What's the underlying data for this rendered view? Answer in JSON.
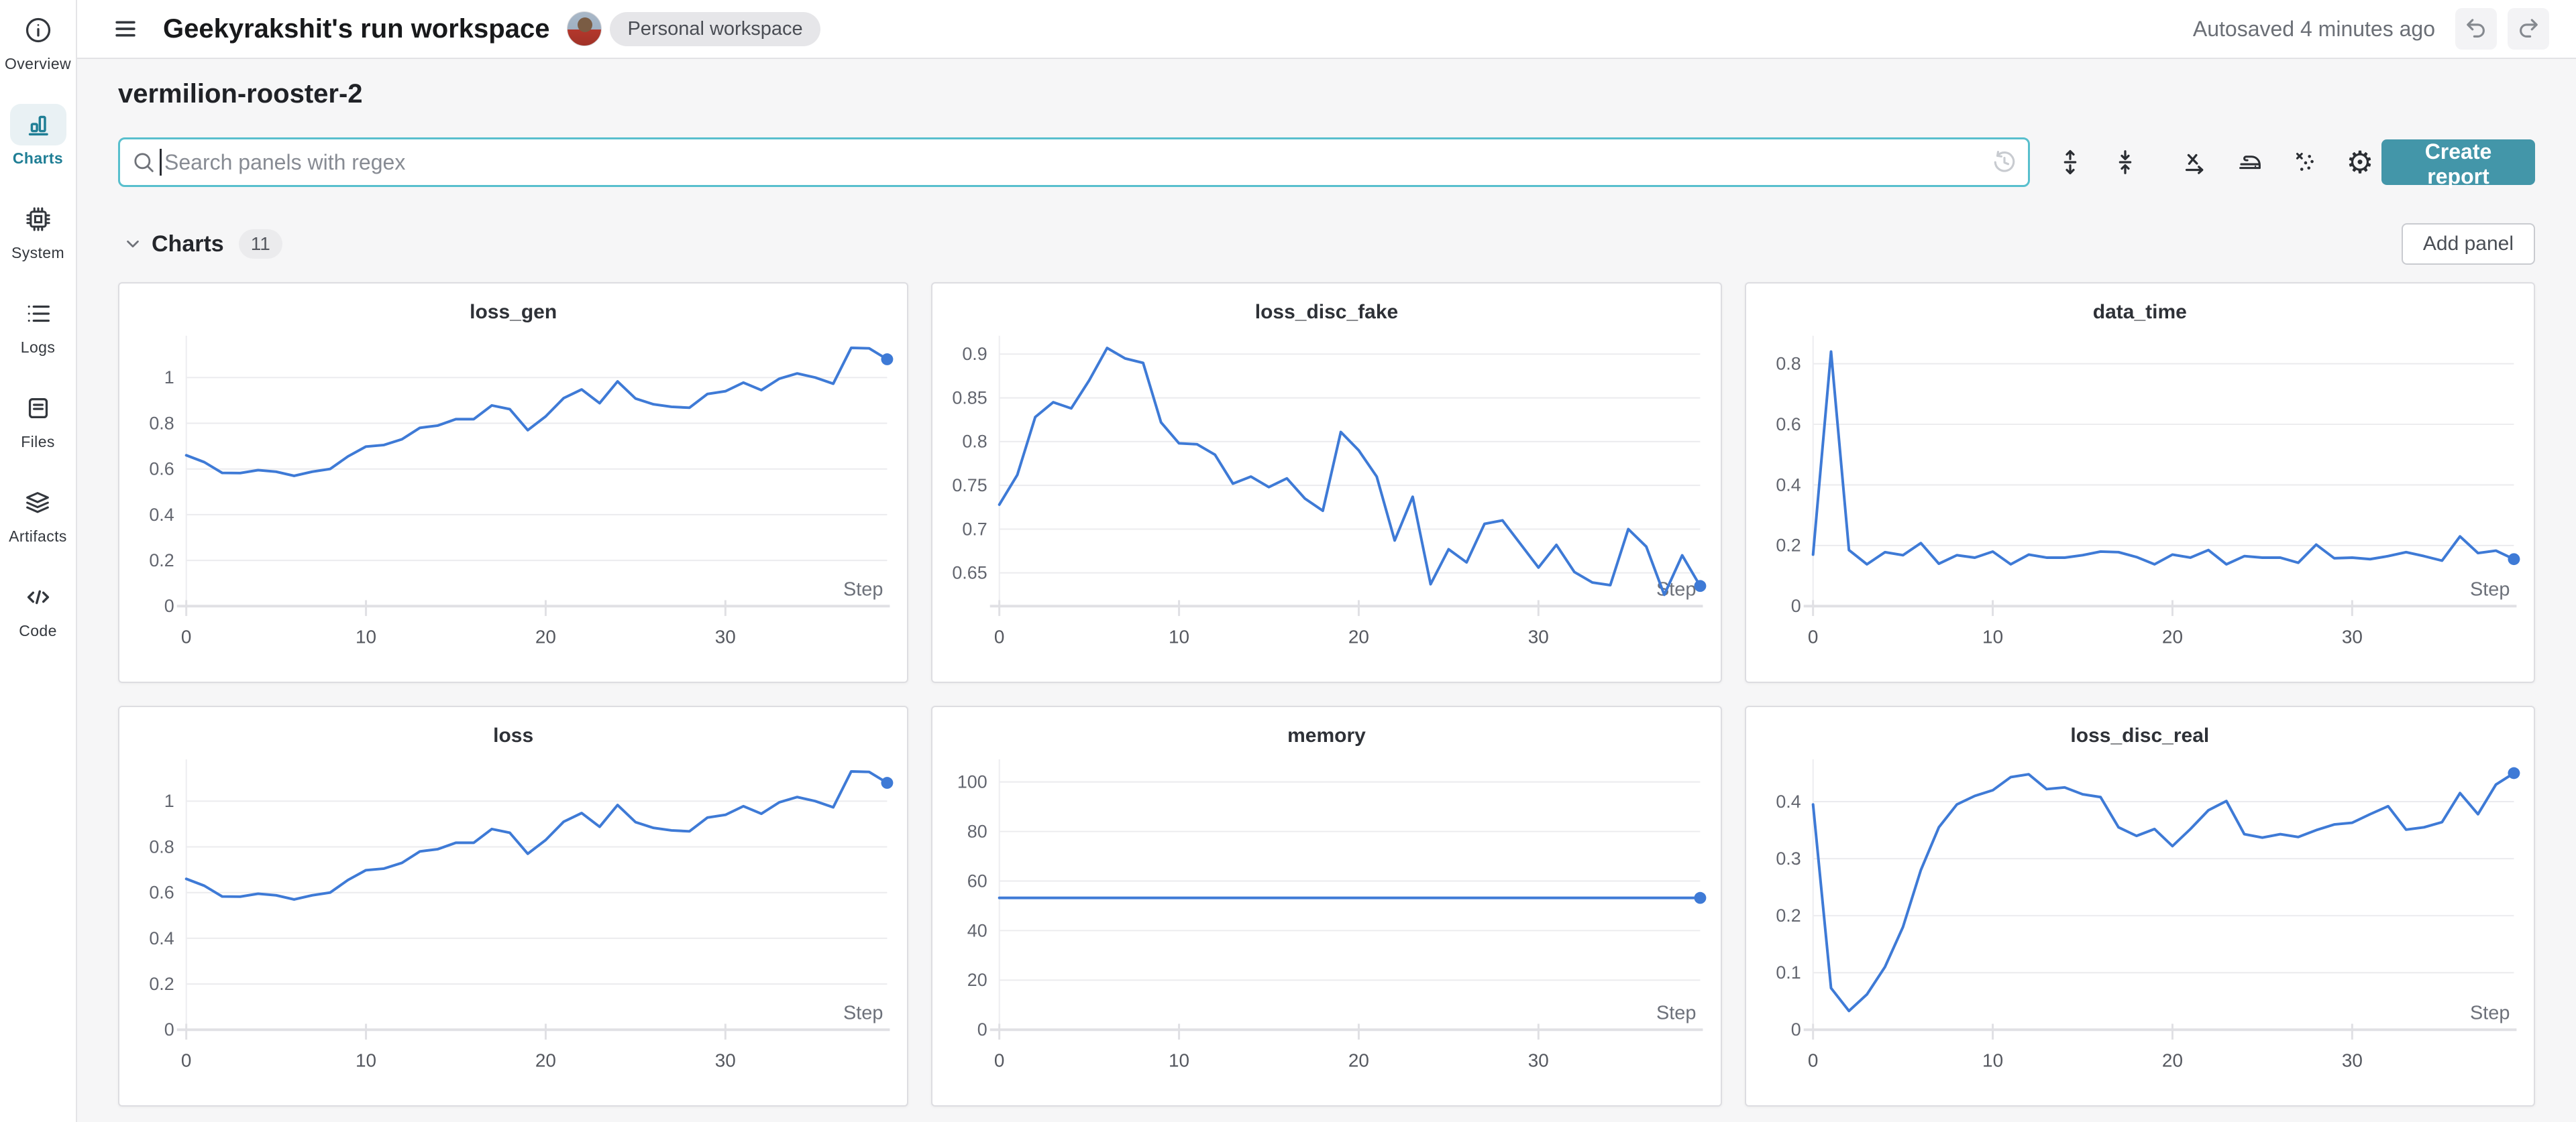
{
  "header": {
    "title": "Geekyrakshit's run workspace",
    "workspace_badge": "Personal workspace",
    "autosave_status": "Autosaved 4 minutes ago"
  },
  "sidebar": {
    "items": [
      {
        "label": "Overview",
        "icon": "info-icon",
        "active": false
      },
      {
        "label": "Charts",
        "icon": "charts-icon",
        "active": true
      },
      {
        "label": "System",
        "icon": "system-icon",
        "active": false
      },
      {
        "label": "Logs",
        "icon": "logs-icon",
        "active": false
      },
      {
        "label": "Files",
        "icon": "files-icon",
        "active": false
      },
      {
        "label": "Artifacts",
        "icon": "artifacts-icon",
        "active": false
      },
      {
        "label": "Code",
        "icon": "code-icon",
        "active": false
      }
    ]
  },
  "run": {
    "name": "vermilion-rooster-2"
  },
  "search": {
    "placeholder": "Search panels with regex"
  },
  "toolbar": {
    "create_report_label": "Create report",
    "icons": [
      "expand-vertical-icon",
      "collapse-vertical-icon",
      "x-axis-icon",
      "smoothing-iron-icon",
      "outliers-icon",
      "gear-icon"
    ]
  },
  "charts_section": {
    "title": "Charts",
    "count": "11",
    "add_panel_label": "Add panel"
  },
  "colors": {
    "accent_teal": "#4396a9",
    "search_border": "#58bfcd",
    "sidebar_active": "#1f7e95",
    "line_blue": "#3e7ad6",
    "grid_line": "#ebebee",
    "axis_line": "#e0e0e4"
  },
  "chart_data": [
    {
      "type": "line",
      "title": "loss_gen",
      "xlabel": "Step",
      "x_ticks": [
        0,
        10,
        20,
        30
      ],
      "x_max": 39,
      "ylim": [
        0,
        1.16
      ],
      "y_ticks": [
        {
          "v": 0,
          "label": "0"
        },
        {
          "v": 0.2,
          "label": "0.2"
        },
        {
          "v": 0.4,
          "label": "0.4"
        },
        {
          "v": 0.6,
          "label": "0.6"
        },
        {
          "v": 0.8,
          "label": "0.8"
        },
        {
          "v": 1,
          "label": "1"
        }
      ],
      "values": [
        0.66,
        0.63,
        0.583,
        0.582,
        0.595,
        0.588,
        0.57,
        0.588,
        0.6,
        0.655,
        0.698,
        0.705,
        0.73,
        0.78,
        0.79,
        0.818,
        0.818,
        0.878,
        0.862,
        0.77,
        0.83,
        0.91,
        0.948,
        0.888,
        0.983,
        0.908,
        0.883,
        0.872,
        0.868,
        0.928,
        0.94,
        0.978,
        0.945,
        0.995,
        1.018,
        1.0,
        0.973,
        1.13,
        1.128,
        1.08
      ],
      "end_marker": true
    },
    {
      "type": "line",
      "title": "loss_disc_fake",
      "xlabel": "Step",
      "x_ticks": [
        0,
        10,
        20,
        30
      ],
      "x_max": 39,
      "ylim": [
        0.612,
        0.915
      ],
      "y_ticks": [
        {
          "v": 0.65,
          "label": "0.65"
        },
        {
          "v": 0.7,
          "label": "0.7"
        },
        {
          "v": 0.75,
          "label": "0.75"
        },
        {
          "v": 0.8,
          "label": "0.8"
        },
        {
          "v": 0.85,
          "label": "0.85"
        },
        {
          "v": 0.9,
          "label": "0.9"
        }
      ],
      "values": [
        0.728,
        0.762,
        0.828,
        0.845,
        0.838,
        0.87,
        0.907,
        0.895,
        0.89,
        0.822,
        0.798,
        0.797,
        0.785,
        0.752,
        0.76,
        0.748,
        0.758,
        0.735,
        0.721,
        0.811,
        0.79,
        0.76,
        0.687,
        0.737,
        0.637,
        0.677,
        0.662,
        0.706,
        0.71,
        0.683,
        0.656,
        0.682,
        0.651,
        0.639,
        0.636,
        0.7,
        0.68,
        0.625,
        0.67,
        0.635
      ],
      "end_marker": true
    },
    {
      "type": "line",
      "title": "data_time",
      "xlabel": "Step",
      "x_ticks": [
        0,
        10,
        20,
        30
      ],
      "x_max": 39,
      "ylim": [
        0,
        0.875
      ],
      "y_ticks": [
        {
          "v": 0,
          "label": "0"
        },
        {
          "v": 0.2,
          "label": "0.2"
        },
        {
          "v": 0.4,
          "label": "0.4"
        },
        {
          "v": 0.6,
          "label": "0.6"
        },
        {
          "v": 0.8,
          "label": "0.8"
        }
      ],
      "values": [
        0.17,
        0.84,
        0.185,
        0.138,
        0.178,
        0.168,
        0.208,
        0.14,
        0.168,
        0.16,
        0.18,
        0.138,
        0.17,
        0.16,
        0.16,
        0.168,
        0.18,
        0.178,
        0.162,
        0.138,
        0.17,
        0.16,
        0.185,
        0.138,
        0.165,
        0.16,
        0.16,
        0.143,
        0.203,
        0.158,
        0.16,
        0.155,
        0.165,
        0.178,
        0.165,
        0.15,
        0.23,
        0.175,
        0.183,
        0.155
      ],
      "end_marker": true
    },
    {
      "type": "line",
      "title": "loss",
      "xlabel": "Step",
      "x_ticks": [
        0,
        10,
        20,
        30
      ],
      "x_max": 39,
      "ylim": [
        0,
        1.16
      ],
      "y_ticks": [
        {
          "v": 0,
          "label": "0"
        },
        {
          "v": 0.2,
          "label": "0.2"
        },
        {
          "v": 0.4,
          "label": "0.4"
        },
        {
          "v": 0.6,
          "label": "0.6"
        },
        {
          "v": 0.8,
          "label": "0.8"
        },
        {
          "v": 1,
          "label": "1"
        }
      ],
      "values": [
        0.66,
        0.63,
        0.583,
        0.582,
        0.595,
        0.588,
        0.57,
        0.588,
        0.6,
        0.655,
        0.698,
        0.705,
        0.73,
        0.78,
        0.79,
        0.818,
        0.818,
        0.878,
        0.862,
        0.77,
        0.83,
        0.91,
        0.948,
        0.888,
        0.983,
        0.908,
        0.883,
        0.872,
        0.868,
        0.928,
        0.94,
        0.978,
        0.945,
        0.995,
        1.018,
        1.0,
        0.973,
        1.13,
        1.128,
        1.08
      ],
      "end_marker": true
    },
    {
      "type": "line",
      "title": "memory",
      "xlabel": "Step",
      "x_ticks": [
        0,
        10,
        20,
        30
      ],
      "x_max": 39,
      "ylim": [
        0,
        107
      ],
      "y_ticks": [
        {
          "v": 0,
          "label": "0"
        },
        {
          "v": 20,
          "label": "20"
        },
        {
          "v": 40,
          "label": "40"
        },
        {
          "v": 60,
          "label": "60"
        },
        {
          "v": 80,
          "label": "80"
        },
        {
          "v": 100,
          "label": "100"
        }
      ],
      "values": [
        53.2,
        53.2,
        53.2,
        53.2,
        53.2,
        53.2,
        53.2,
        53.2,
        53.2,
        53.2,
        53.2,
        53.2,
        53.2,
        53.2,
        53.2,
        53.2,
        53.2,
        53.2,
        53.2,
        53.2,
        53.2,
        53.2,
        53.2,
        53.2,
        53.2,
        53.2,
        53.2,
        53.2,
        53.2,
        53.2,
        53.2,
        53.2,
        53.2,
        53.2,
        53.2,
        53.2,
        53.2,
        53.2,
        53.2,
        53.2
      ],
      "end_marker": true
    },
    {
      "type": "line",
      "title": "loss_disc_real",
      "xlabel": "Step",
      "x_ticks": [
        0,
        10,
        20,
        30
      ],
      "x_max": 39,
      "ylim": [
        0,
        0.465
      ],
      "y_ticks": [
        {
          "v": 0,
          "label": "0"
        },
        {
          "v": 0.1,
          "label": "0.1"
        },
        {
          "v": 0.2,
          "label": "0.2"
        },
        {
          "v": 0.3,
          "label": "0.3"
        },
        {
          "v": 0.4,
          "label": "0.4"
        }
      ],
      "values": [
        0.395,
        0.073,
        0.033,
        0.062,
        0.11,
        0.18,
        0.28,
        0.355,
        0.395,
        0.41,
        0.42,
        0.443,
        0.448,
        0.422,
        0.425,
        0.413,
        0.408,
        0.355,
        0.34,
        0.352,
        0.322,
        0.352,
        0.385,
        0.401,
        0.343,
        0.337,
        0.343,
        0.338,
        0.35,
        0.36,
        0.363,
        0.378,
        0.392,
        0.351,
        0.355,
        0.364,
        0.415,
        0.378,
        0.43,
        0.45
      ],
      "end_marker": true
    }
  ]
}
